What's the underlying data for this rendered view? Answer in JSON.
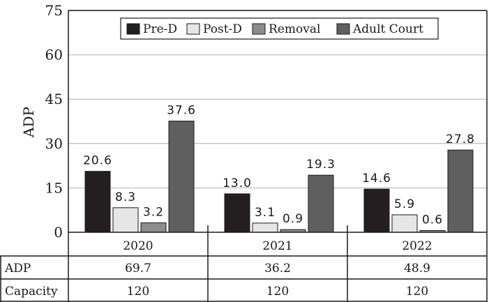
{
  "chart_data": {
    "type": "bar",
    "categories": [
      "2020",
      "2021",
      "2022"
    ],
    "series": [
      {
        "name": "Pre-D",
        "values": [
          20.6,
          13.0,
          14.6
        ],
        "color": "#231f20",
        "labels": [
          "20.6",
          "13.0",
          "14.6"
        ]
      },
      {
        "name": "Post-D",
        "values": [
          8.3,
          3.1,
          5.9
        ],
        "color": "#e6e6e6",
        "labels": [
          "8.3",
          "3.1",
          "5.9"
        ]
      },
      {
        "name": "Removal",
        "values": [
          3.2,
          0.9,
          0.6
        ],
        "color": "#8c8c8c",
        "labels": [
          "3.2",
          "0.9",
          "0.6"
        ]
      },
      {
        "name": "Adult Court",
        "values": [
          37.6,
          19.3,
          27.8
        ],
        "color": "#5f5f5f",
        "labels": [
          "37.6",
          "19.3",
          "27.8"
        ]
      }
    ],
    "ylabel": "ADP",
    "ylim": [
      0,
      75
    ],
    "yticks": [
      "0",
      "15",
      "30",
      "45",
      "60",
      "75"
    ],
    "grid": true,
    "legend": "top",
    "table": {
      "rows": [
        {
          "label": "ADP",
          "values": [
            "69.7",
            "36.2",
            "48.9"
          ]
        },
        {
          "label": "Capacity",
          "values": [
            "120",
            "120",
            "120"
          ]
        }
      ]
    }
  }
}
